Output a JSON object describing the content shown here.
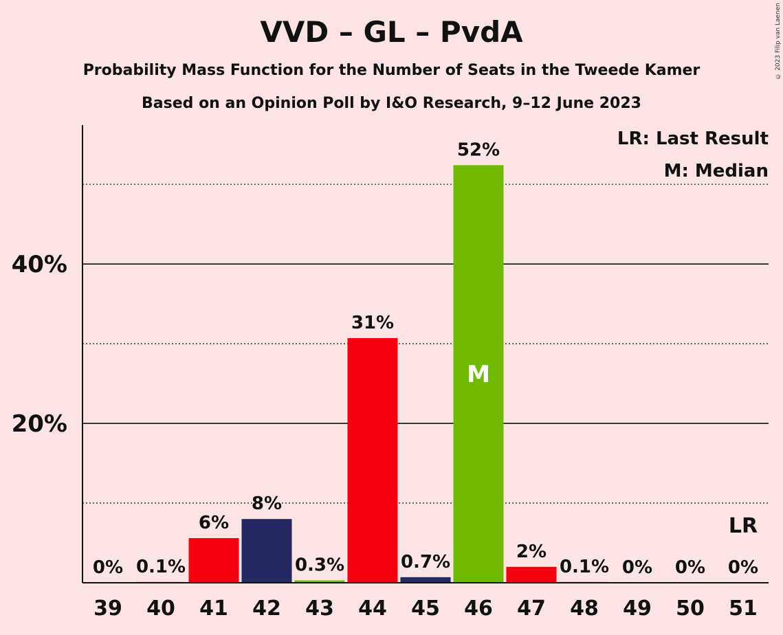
{
  "chart_data": {
    "type": "bar",
    "title": "VVD – GL – PvdA",
    "subtitle": "Probability Mass Function for the Number of Seats in the Tweede Kamer",
    "subtitle2": "Based on an Opinion Poll by I&O Research, 9–12 June 2023",
    "copyright": "© 2023 Filip van Laenen",
    "categories": [
      "39",
      "40",
      "41",
      "42",
      "43",
      "44",
      "45",
      "46",
      "47",
      "48",
      "49",
      "50",
      "51"
    ],
    "values": [
      0,
      0.1,
      5.6,
      8.0,
      0.3,
      30.7,
      0.7,
      52.4,
      2.0,
      0.1,
      0,
      0,
      0
    ],
    "labels": [
      "0%",
      "0.1%",
      "6%",
      "8%",
      "0.3%",
      "31%",
      "0.7%",
      "52%",
      "2%",
      "0.1%",
      "0%",
      "0%",
      "0%"
    ],
    "bar_colors": [
      "#f5000f",
      "#f5000f",
      "#f5000f",
      "#252962",
      "#6fba00",
      "#f5000f",
      "#252962",
      "#6fba00",
      "#f5000f",
      "#f5000f",
      "#f5000f",
      "#f5000f",
      "#f5000f"
    ],
    "ylim": [
      0,
      57
    ],
    "yticks": [
      20,
      40
    ],
    "ytick_labels": [
      "20%",
      "40%"
    ],
    "minor_gridlines": [
      10,
      30,
      50
    ],
    "median_category": "46",
    "median_marker": "M",
    "last_result_category": "51",
    "last_result_marker": "LR",
    "legend": [
      "LR: Last Result",
      "M: Median"
    ],
    "legend_position": "top-right",
    "background": "#fce4e5"
  }
}
